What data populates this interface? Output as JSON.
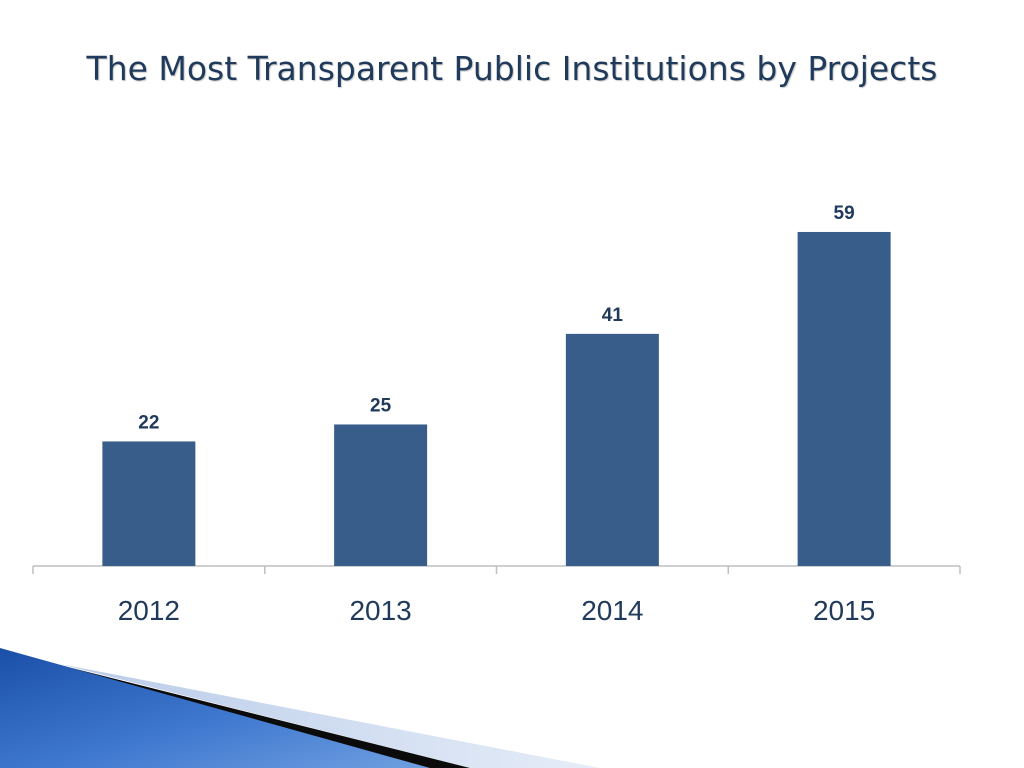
{
  "slide": {
    "title": "The Most Transparent Public Institutions by Projects"
  },
  "chart_data": {
    "type": "bar",
    "title": "",
    "categories": [
      "2012",
      "2013",
      "2014",
      "2015"
    ],
    "values": [
      22,
      25,
      41,
      59
    ],
    "data_labels": [
      "22",
      "25",
      "41",
      "59"
    ],
    "xlabel": "",
    "ylabel": "",
    "ylim": [
      0,
      65
    ],
    "grid": false,
    "legend": "none",
    "bar_color": "#385d8a"
  },
  "colors": {
    "title": "#1f3a5a",
    "bar": "#385d8a",
    "axis": "#bfbfbf",
    "label": "#1f3a5a"
  },
  "decoration": {
    "corner_swoosh_colors": [
      "#1d56b0",
      "#4f86d8",
      "#0a0a0a",
      "#c5d4ee"
    ]
  }
}
